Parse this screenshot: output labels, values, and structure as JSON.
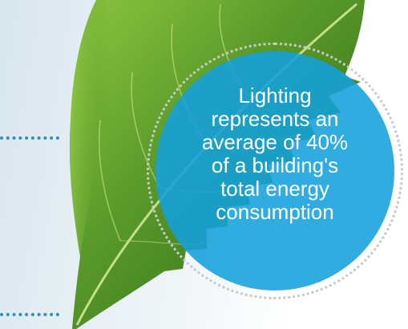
{
  "badge": {
    "text": "Lighting represents an average of 40% of a building's total energy consumption"
  },
  "colors": {
    "badge_fill": "#13a0dc",
    "accent_dots": "#2b8fc2",
    "leaf": "#5a9a2a"
  }
}
